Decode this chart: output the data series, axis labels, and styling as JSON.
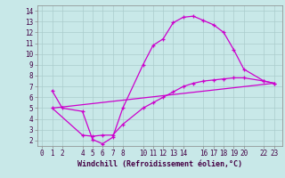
{
  "title": "",
  "xlabel": "Windchill (Refroidissement éolien,°C)",
  "bg_color": "#c8e8e8",
  "line_color": "#cc00cc",
  "grid_color": "#aacccc",
  "xlim": [
    -0.5,
    23.8
  ],
  "ylim": [
    1.5,
    14.5
  ],
  "xticks": [
    0,
    1,
    2,
    4,
    5,
    6,
    7,
    8,
    10,
    11,
    12,
    13,
    14,
    16,
    17,
    18,
    19,
    20,
    22,
    23
  ],
  "yticks": [
    2,
    3,
    4,
    5,
    6,
    7,
    8,
    9,
    10,
    11,
    12,
    13,
    14
  ],
  "curve1_x": [
    1,
    2,
    4,
    5,
    6,
    7,
    8,
    10,
    11,
    12,
    13,
    14,
    15,
    16,
    17,
    18,
    19,
    20,
    22,
    23
  ],
  "curve1_y": [
    6.6,
    5.0,
    4.7,
    2.1,
    1.7,
    2.3,
    5.0,
    9.0,
    10.8,
    11.4,
    12.9,
    13.4,
    13.5,
    13.1,
    12.7,
    12.0,
    10.4,
    8.6,
    7.5,
    7.3
  ],
  "curve2_x": [
    1,
    23
  ],
  "curve2_y": [
    5.0,
    7.3
  ],
  "curve3_x": [
    1,
    4,
    5,
    6,
    7,
    8,
    10,
    11,
    12,
    13,
    14,
    15,
    16,
    17,
    18,
    19,
    20,
    22,
    23
  ],
  "curve3_y": [
    5.0,
    2.5,
    2.4,
    2.5,
    2.5,
    3.5,
    5.0,
    5.5,
    6.0,
    6.5,
    7.0,
    7.3,
    7.5,
    7.6,
    7.7,
    7.8,
    7.8,
    7.5,
    7.3
  ],
  "tick_fontsize": 5.5,
  "xlabel_fontsize": 6.0
}
